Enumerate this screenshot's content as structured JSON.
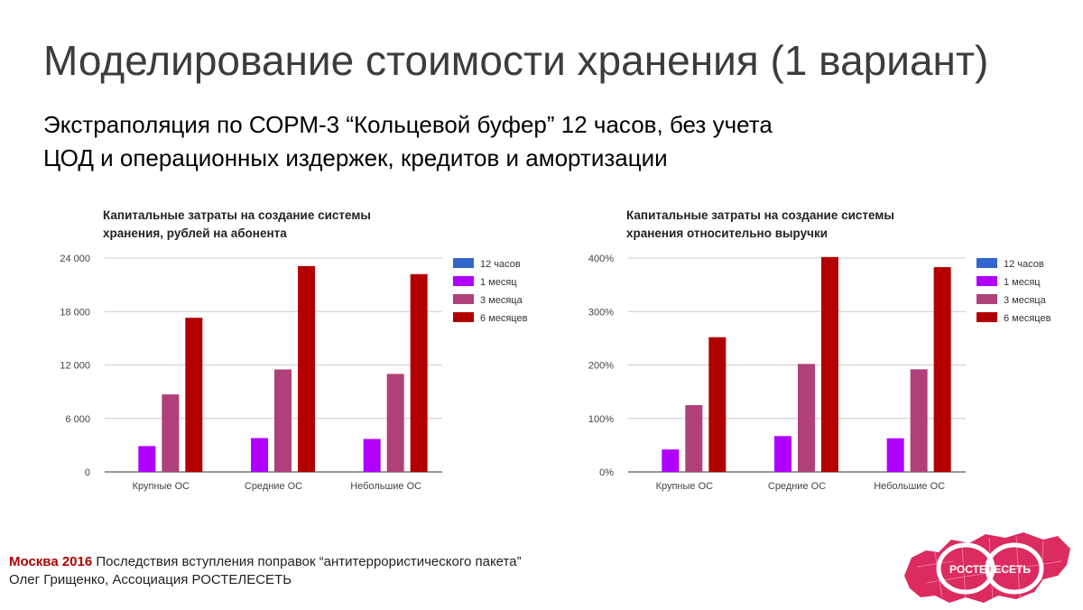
{
  "slide": {
    "title": "Моделирование стоимости хранения (1 вариант)",
    "subtitle_line1": "Экстраполяция по СОРМ-3 “Кольцевой буфер” 12 часов, без учета",
    "subtitle_line2": "ЦОД и операционных издержек, кредитов и амортизации"
  },
  "footer": {
    "city_year": "Москва 2016",
    "topic": " Последствия вступления поправок “антитеррористического пакета”",
    "author": "Олег Грищенко, Ассоциация РОСТЕЛЕСЕТЬ"
  },
  "logo": {
    "text": "РОСТЕЛЕСЕТЬ",
    "icon": "rostelecom-map-logo"
  },
  "chart_data": [
    {
      "type": "bar",
      "title_line1": "Капитальные затраты на создание системы",
      "title_line2": "хранения, рублей на абонента",
      "categories": [
        "Крупные ОС",
        "Средние ОС",
        "Небольшие ОС"
      ],
      "series": [
        {
          "name": "12 часов",
          "color": "#3366cc",
          "values": [
            0,
            0,
            0
          ]
        },
        {
          "name": "1 месяц",
          "color": "#b000ff",
          "values": [
            2900,
            3800,
            3700
          ]
        },
        {
          "name": "3 месяца",
          "color": "#b0407a",
          "values": [
            8700,
            11500,
            11000
          ]
        },
        {
          "name": "6 месяцев",
          "color": "#b20000",
          "values": [
            17300,
            23100,
            22200
          ]
        }
      ],
      "ylim": [
        0,
        24000
      ],
      "yticks": [
        0,
        6000,
        12000,
        18000,
        24000
      ],
      "ytick_labels": [
        "0",
        "6 000",
        "12 000",
        "18 000",
        "24 000"
      ],
      "grid": true,
      "legend": "right"
    },
    {
      "type": "bar",
      "title_line1": "Капитальные затраты на создание системы",
      "title_line2": "хранения относительно выручки",
      "categories": [
        "Крупные ОС",
        "Средние ОС",
        "Небольшие ОС"
      ],
      "series": [
        {
          "name": "12 часов",
          "color": "#3366cc",
          "values": [
            0,
            0,
            0
          ]
        },
        {
          "name": "1 месяц",
          "color": "#b000ff",
          "values": [
            42,
            67,
            63
          ]
        },
        {
          "name": "3 месяца",
          "color": "#b0407a",
          "values": [
            125,
            202,
            192
          ]
        },
        {
          "name": "6 месяцев",
          "color": "#b20000",
          "values": [
            252,
            402,
            383
          ]
        }
      ],
      "ylim": [
        0,
        400
      ],
      "yticks": [
        0,
        100,
        200,
        300,
        400
      ],
      "ytick_labels": [
        "0%",
        "100%",
        "200%",
        "300%",
        "400%"
      ],
      "grid": true,
      "legend": "right"
    }
  ]
}
